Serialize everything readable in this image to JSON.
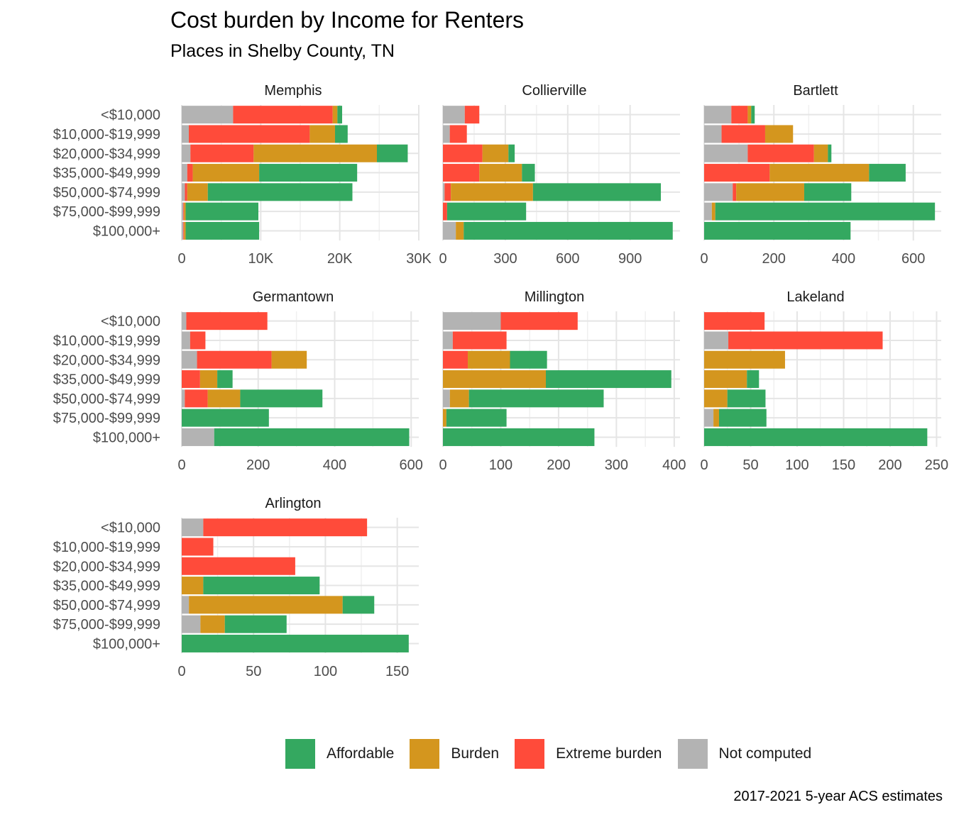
{
  "chart_data": {
    "type": "bar",
    "orientation": "horizontal",
    "stacked": true,
    "title": "Cost burden by Income for Renters",
    "subtitle": "Places in Shelby County, TN",
    "caption": "2017-2021 5-year ACS estimates",
    "categories": [
      "<$10,000",
      "$10,000-$19,999",
      "$20,000-$34,999",
      "$35,000-$49,999",
      "$50,000-$74,999",
      "$75,000-$99,999",
      "$100,000+"
    ],
    "stack_order": [
      "Not computed",
      "Extreme burden",
      "Burden",
      "Affordable"
    ],
    "legend": {
      "position": "bottom",
      "entries": [
        {
          "name": "Affordable",
          "color": "#34A860"
        },
        {
          "name": "Burden",
          "color": "#D4961E"
        },
        {
          "name": "Extreme burden",
          "color": "#FF4B3A"
        },
        {
          "name": "Not computed",
          "color": "#B3B3B3"
        }
      ]
    },
    "grid": true,
    "panels": [
      {
        "name": "Memphis",
        "xlim": [
          0,
          30000
        ],
        "ticks": [
          0,
          10000,
          20000,
          30000
        ],
        "tick_labels": [
          "0",
          "10K",
          "20K",
          "30K"
        ],
        "series": [
          {
            "name": "Not computed",
            "values": [
              6500,
              900,
              1100,
              700,
              400,
              200,
              200
            ]
          },
          {
            "name": "Extreme burden",
            "values": [
              12600,
              15300,
              8000,
              700,
              300,
              100,
              100
            ]
          },
          {
            "name": "Burden",
            "values": [
              600,
              3200,
              15600,
              8400,
              2600,
              200,
              200
            ]
          },
          {
            "name": "Affordable",
            "values": [
              600,
              1600,
              3900,
              12400,
              18300,
              9200,
              9300
            ]
          }
        ]
      },
      {
        "name": "Collierville",
        "xlim": [
          0,
          1140
        ],
        "ticks": [
          0,
          300,
          600,
          900
        ],
        "tick_labels": [
          "0",
          "300",
          "600",
          "900"
        ],
        "series": [
          {
            "name": "Not computed",
            "values": [
              105,
              33,
              0,
              0,
              8,
              0,
              62
            ]
          },
          {
            "name": "Extreme burden",
            "values": [
              70,
              82,
              190,
              175,
              30,
              20,
              0
            ]
          },
          {
            "name": "Burden",
            "values": [
              0,
              0,
              125,
              205,
              395,
              0,
              38
            ]
          },
          {
            "name": "Affordable",
            "values": [
              0,
              0,
              30,
              62,
              615,
              380,
              1005
            ]
          }
        ]
      },
      {
        "name": "Bartlett",
        "xlim": [
          0,
          680
        ],
        "ticks": [
          0,
          200,
          400,
          600
        ],
        "tick_labels": [
          "0",
          "200",
          "400",
          "600"
        ],
        "series": [
          {
            "name": "Not computed",
            "values": [
              78,
              50,
              125,
              0,
              82,
              22,
              0
            ]
          },
          {
            "name": "Extreme burden",
            "values": [
              47,
              125,
              190,
              188,
              10,
              0,
              0
            ]
          },
          {
            "name": "Burden",
            "values": [
              10,
              80,
              40,
              285,
              195,
              10,
              0
            ]
          },
          {
            "name": "Affordable",
            "values": [
              10,
              0,
              10,
              105,
              135,
              630,
              420
            ]
          }
        ]
      },
      {
        "name": "Germantown",
        "xlim": [
          0,
          620
        ],
        "ticks": [
          0,
          200,
          400,
          600
        ],
        "tick_labels": [
          "0",
          "200",
          "400",
          "600"
        ],
        "series": [
          {
            "name": "Not computed",
            "values": [
              12,
              22,
              40,
              0,
              8,
              0,
              85
            ]
          },
          {
            "name": "Extreme burden",
            "values": [
              212,
              40,
              195,
              48,
              60,
              0,
              0
            ]
          },
          {
            "name": "Burden",
            "values": [
              0,
              0,
              92,
              45,
              85,
              0,
              0
            ]
          },
          {
            "name": "Affordable",
            "values": [
              0,
              0,
              0,
              40,
              215,
              228,
              510
            ]
          }
        ]
      },
      {
        "name": "Millington",
        "xlim": [
          0,
          410
        ],
        "ticks": [
          0,
          100,
          200,
          300,
          400
        ],
        "tick_labels": [
          "0",
          "100",
          "200",
          "300",
          "400"
        ],
        "series": [
          {
            "name": "Not computed",
            "values": [
              100,
              17,
              0,
              0,
              12,
              0,
              0
            ]
          },
          {
            "name": "Extreme burden",
            "values": [
              133,
              93,
              43,
              0,
              0,
              0,
              0
            ]
          },
          {
            "name": "Burden",
            "values": [
              0,
              0,
              73,
              178,
              33,
              6,
              0
            ]
          },
          {
            "name": "Affordable",
            "values": [
              0,
              0,
              64,
              217,
              233,
              104,
              262
            ]
          }
        ]
      },
      {
        "name": "Lakeland",
        "xlim": [
          0,
          255
        ],
        "ticks": [
          0,
          50,
          100,
          150,
          200,
          250
        ],
        "tick_labels": [
          "0",
          "50",
          "100",
          "150",
          "200",
          "250"
        ],
        "series": [
          {
            "name": "Not computed",
            "values": [
              0,
              26,
              0,
              0,
              0,
              10,
              0
            ]
          },
          {
            "name": "Extreme burden",
            "values": [
              65,
              166,
              0,
              0,
              0,
              0,
              0
            ]
          },
          {
            "name": "Burden",
            "values": [
              0,
              0,
              87,
              46,
              25,
              6,
              0
            ]
          },
          {
            "name": "Affordable",
            "values": [
              0,
              0,
              0,
              13,
              41,
              51,
              240
            ]
          }
        ]
      },
      {
        "name": "Arlington",
        "xlim": [
          0,
          165
        ],
        "ticks": [
          0,
          50,
          100,
          150
        ],
        "tick_labels": [
          "0",
          "50",
          "100",
          "150"
        ],
        "series": [
          {
            "name": "Not computed",
            "values": [
              15,
              0,
              0,
              0,
              5,
              13,
              0
            ]
          },
          {
            "name": "Extreme burden",
            "values": [
              114,
              22,
              79,
              0,
              0,
              0,
              0
            ]
          },
          {
            "name": "Burden",
            "values": [
              0,
              0,
              0,
              15,
              107,
              17,
              0
            ]
          },
          {
            "name": "Affordable",
            "values": [
              0,
              0,
              0,
              81,
              22,
              43,
              158
            ]
          }
        ]
      }
    ]
  }
}
